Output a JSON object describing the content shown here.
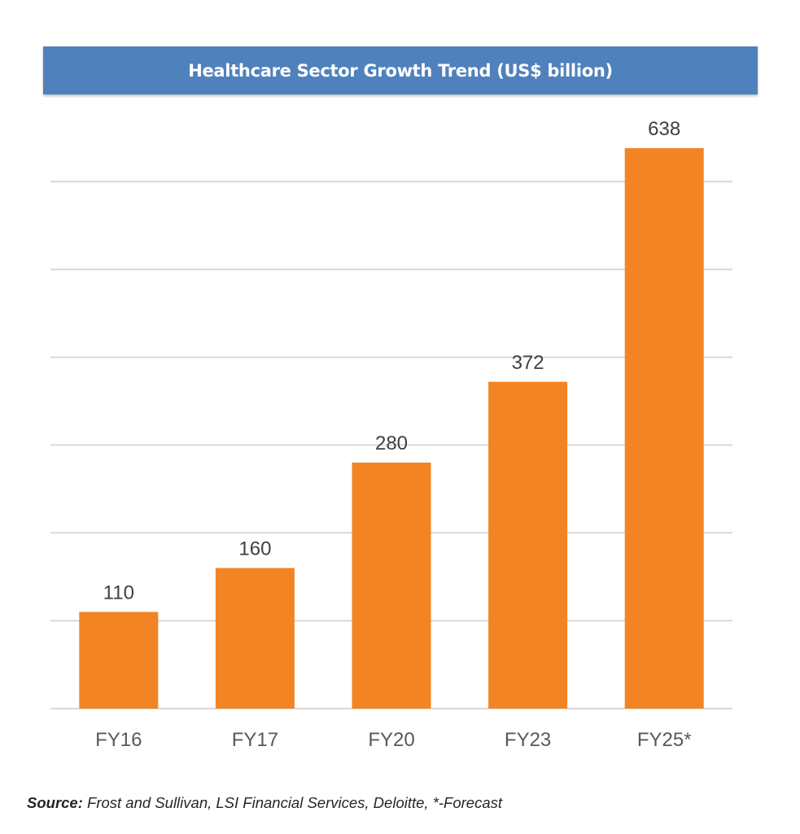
{
  "chart_data": {
    "type": "bar",
    "title": "Healthcare Sector Growth Trend (US$ billion)",
    "categories": [
      "FY16",
      "FY17",
      "FY20",
      "FY23",
      "FY25*"
    ],
    "values": [
      110,
      160,
      280,
      372,
      638
    ],
    "data_labels": [
      "110",
      "160",
      "280",
      "372",
      "638"
    ],
    "xlabel": "",
    "ylabel": "",
    "ylim": [
      0,
      700
    ],
    "grid": true,
    "y_tick_labels_visible": false,
    "bar_color": "#f28423",
    "legend": "none"
  },
  "source": {
    "label": "Source:",
    "text": " Frost and Sullivan, LSI Financial Services, Deloitte, *-Forecast"
  }
}
